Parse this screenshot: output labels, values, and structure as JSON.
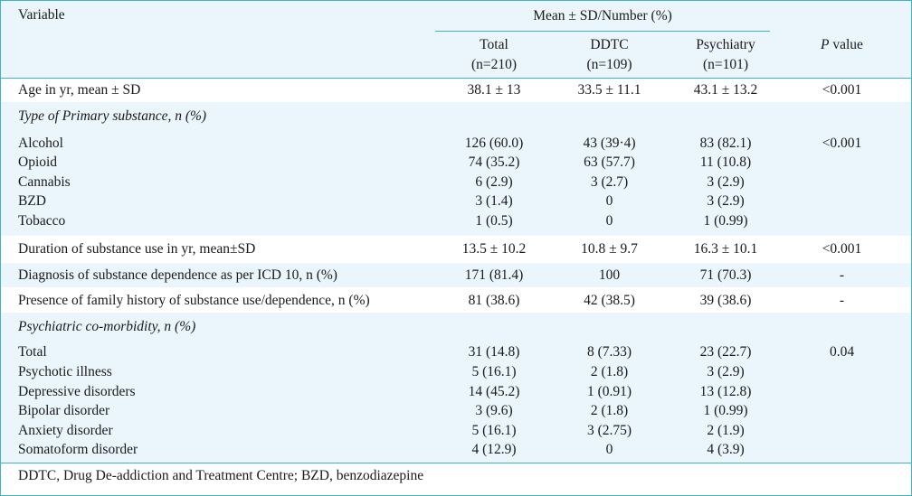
{
  "header": {
    "variable": "Variable",
    "group": "Mean ± SD/Number (%)",
    "col_total": "Total",
    "col_total_n": "(n=210)",
    "col_ddtc": "DDTC",
    "col_ddtc_n": "(n=109)",
    "col_psy": "Psychiatry",
    "col_psy_n": "(n=101)",
    "col_p_italic": "P",
    "col_p_rest": " value"
  },
  "rows": {
    "age": {
      "label": "Age in yr, mean ± SD",
      "total": "38.1 ± 13",
      "ddtc": "33.5 ± 11.1",
      "psy": "43.1 ± 13.2",
      "p": "<0.001"
    },
    "section_substance": "Type of Primary substance, n (%)",
    "substance": [
      {
        "label": "Alcohol",
        "total": "126 (60.0)",
        "ddtc": "43 (39·4)",
        "psy": "83 (82.1)",
        "p": "<0.001"
      },
      {
        "label": "Opioid",
        "total": "74 (35.2)",
        "ddtc": "63 (57.7)",
        "psy": "11 (10.8)",
        "p": ""
      },
      {
        "label": "Cannabis",
        "total": "6 (2.9)",
        "ddtc": "3 (2.7)",
        "psy": "3 (2.9)",
        "p": ""
      },
      {
        "label": "BZD",
        "total": "3 (1.4)",
        "ddtc": "0",
        "psy": "3 (2.9)",
        "p": ""
      },
      {
        "label": "Tobacco",
        "total": "1 (0.5)",
        "ddtc": "0",
        "psy": "1 (0.99)",
        "p": ""
      }
    ],
    "duration": {
      "label": "Duration of substance use in yr, mean±SD",
      "total": "13.5 ± 10.2",
      "ddtc": "10.8 ± 9.7",
      "psy": "16.3 ± 10.1",
      "p": "<0.001"
    },
    "diagnosis": {
      "label": "Diagnosis of substance dependence as per ICD 10, n (%)",
      "total": "171 (81.4)",
      "ddtc": "100",
      "psy": "71 (70.3)",
      "p": "-"
    },
    "family": {
      "label": "Presence of family history of substance use/dependence, n (%)",
      "total": "81 (38.6)",
      "ddtc": "42 (38.5)",
      "psy": "39 (38.6)",
      "p": "-"
    },
    "section_psychiatric": "Psychiatric co-morbidity, n (%)",
    "psychiatric": [
      {
        "label": "Total",
        "total": "31 (14.8)",
        "ddtc": "8 (7.33)",
        "psy": "23 (22.7)",
        "p": "0.04"
      },
      {
        "label": "Psychotic illness",
        "total": "5 (16.1)",
        "ddtc": "2 (1.8)",
        "psy": "3 (2.9)",
        "p": ""
      },
      {
        "label": "Depressive disorders",
        "total": "14 (45.2)",
        "ddtc": "1 (0.91)",
        "psy": "13 (12.8)",
        "p": ""
      },
      {
        "label": "Bipolar disorder",
        "total": "3 (9.6)",
        "ddtc": "2 (1.8)",
        "psy": "1 (0.99)",
        "p": ""
      },
      {
        "label": "Anxiety disorder",
        "total": "5 (16.1)",
        "ddtc": "3 (2.75)",
        "psy": "2 (1.9)",
        "p": ""
      },
      {
        "label": "Somatoform disorder",
        "total": "4 (12.9)",
        "ddtc": "0",
        "psy": "4 (3.9)",
        "p": ""
      }
    ]
  },
  "footnote": "DDTC, Drug De-addiction and Treatment Centre; BZD, benzodiazepine"
}
